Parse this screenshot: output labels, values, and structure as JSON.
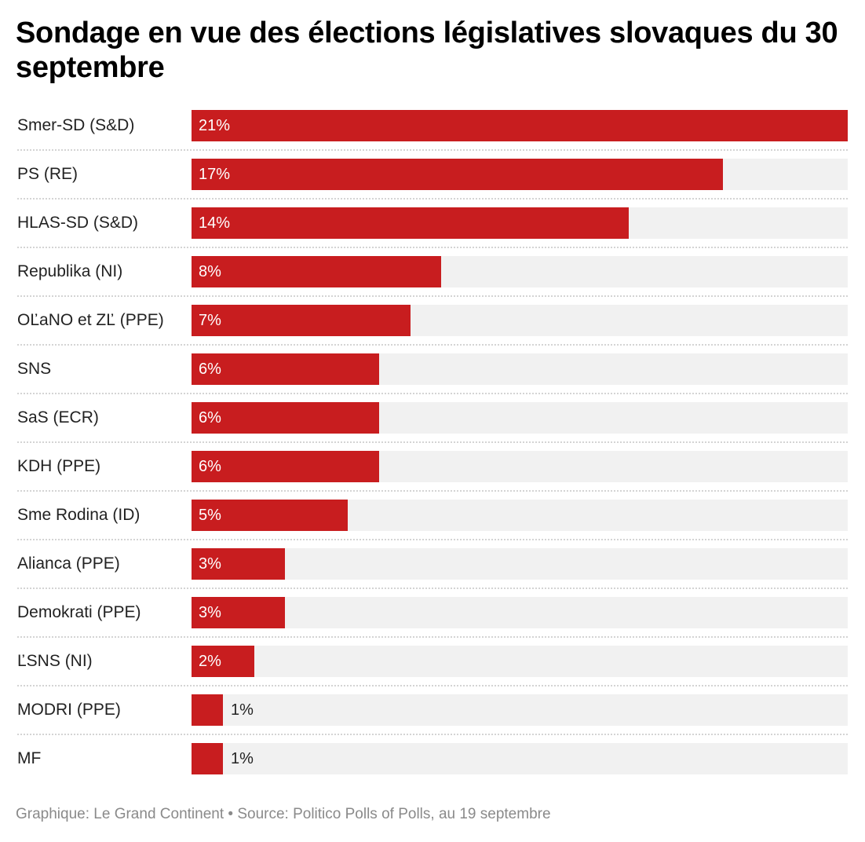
{
  "chart_data": {
    "type": "bar",
    "orientation": "horizontal",
    "title": "Sondage en vue des élections législatives slovaques du 30 septembre",
    "categories": [
      "Smer-SD (S&D)",
      "PS (RE)",
      "HLAS-SD (S&D)",
      "Republika (NI)",
      "OĽaNO et ZĽ (PPE)",
      "SNS",
      "SaS (ECR)",
      "KDH (PPE)",
      "Sme Rodina (ID)",
      "Alianca (PPE)",
      "Demokrati (PPE)",
      "ĽSNS (NI)",
      "MODRI (PPE)",
      "MF"
    ],
    "values": [
      21,
      17,
      14,
      8,
      7,
      6,
      6,
      6,
      5,
      3,
      3,
      2,
      1,
      1
    ],
    "value_labels": [
      "21%",
      "17%",
      "14%",
      "8%",
      "7%",
      "6%",
      "6%",
      "6%",
      "5%",
      "3%",
      "3%",
      "2%",
      "1%",
      "1%"
    ],
    "unit": "%",
    "xlim": [
      0,
      21
    ],
    "xlabel": "",
    "ylabel": "",
    "grid": false,
    "legend": "none",
    "colors": {
      "bar": "#c81d1f",
      "track": "#f1f1f1",
      "separator": "#d4d4d4"
    }
  },
  "header": {
    "title": "Sondage en vue des élections législatives slovaques du 30 septembre"
  },
  "footer": {
    "credit": "Graphique: Le Grand Continent • Source: Politico Polls of Polls, au 19 septembre"
  }
}
